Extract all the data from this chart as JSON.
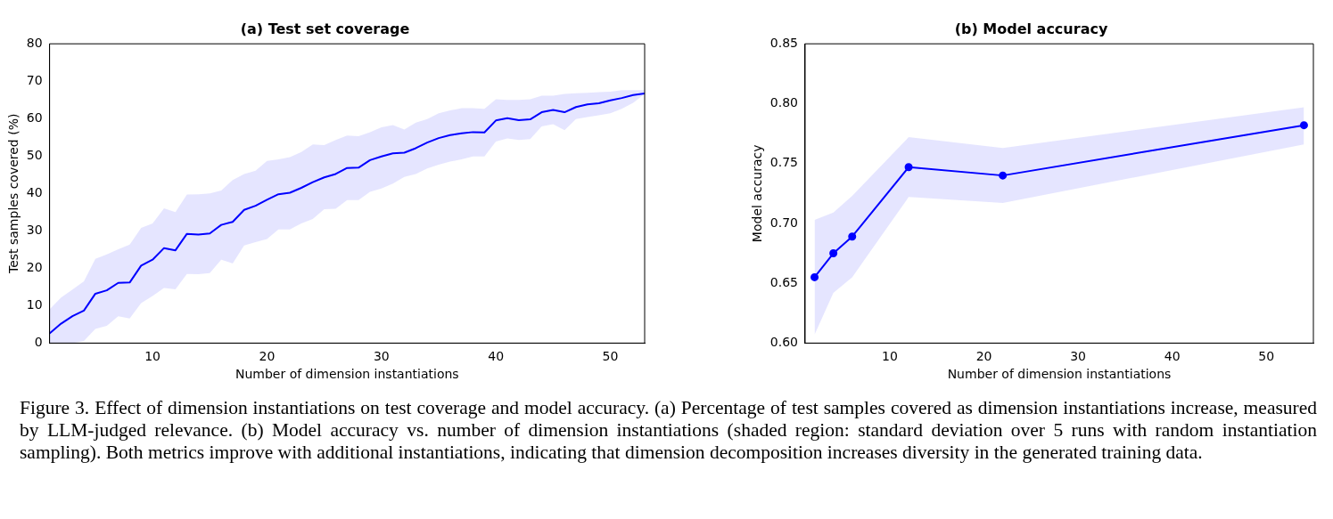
{
  "chart_data": [
    {
      "type": "line",
      "title": "(a) Test set coverage",
      "xlabel": "Number of dimension instantiations",
      "ylabel": "Test samples covered (%)",
      "xlim": [
        1,
        53
      ],
      "xticks": [
        10,
        20,
        30,
        40,
        50
      ],
      "ylim": [
        0,
        80
      ],
      "yticks": [
        0,
        10,
        20,
        30,
        40,
        50,
        60,
        70,
        80
      ],
      "grid": false,
      "legend": false,
      "marker": "none",
      "line_style": "solid",
      "x": [
        1,
        2,
        3,
        4,
        5,
        6,
        7,
        8,
        9,
        10,
        11,
        12,
        13,
        14,
        15,
        16,
        17,
        18,
        19,
        20,
        21,
        22,
        23,
        24,
        25,
        26,
        27,
        28,
        29,
        30,
        31,
        32,
        33,
        34,
        35,
        36,
        37,
        38,
        39,
        40,
        41,
        42,
        43,
        44,
        45,
        46,
        47,
        48,
        49,
        50,
        51,
        52,
        53
      ],
      "series": [
        {
          "color": "#0000ff",
          "values": [
            2.6,
            5.2,
            7.2,
            8.7,
            13.2,
            14.1,
            16.1,
            16.2,
            20.7,
            22.3,
            25.4,
            24.8,
            29.2,
            29.0,
            29.3,
            31.6,
            32.4,
            35.6,
            36.7,
            38.3,
            39.8,
            40.2,
            41.5,
            43.0,
            44.3,
            45.2,
            46.8,
            46.9,
            48.9,
            49.9,
            50.7,
            50.9,
            52.1,
            53.6,
            54.8,
            55.6,
            56.1,
            56.4,
            56.3,
            59.5,
            60.1,
            59.6,
            59.8,
            61.7,
            62.3,
            61.7,
            63.1,
            63.8,
            64.1,
            64.9,
            65.5,
            66.3,
            66.7
          ],
          "lower": [
            0,
            0,
            0,
            0.6,
            3.8,
            4.6,
            7.2,
            6.6,
            10.7,
            12.6,
            14.7,
            14.4,
            18.5,
            18.4,
            18.7,
            22.3,
            21.3,
            26.1,
            27.0,
            27.8,
            30.4,
            30.4,
            32.0,
            33.2,
            35.8,
            35.9,
            38.2,
            38.2,
            40.4,
            41.3,
            42.6,
            44.4,
            45.2,
            46.7,
            47.7,
            48.5,
            49.1,
            49.9,
            49.9,
            53.9,
            54.7,
            54.3,
            54.5,
            57.9,
            58.5,
            56.9,
            59.9,
            60.4,
            60.9,
            61.4,
            62.6,
            64.2,
            66.6
          ],
          "upper": [
            9.0,
            12.2,
            14.3,
            16.5,
            22.5,
            23.7,
            25.1,
            26.3,
            30.8,
            32.0,
            36.0,
            35.0,
            39.7,
            39.8,
            40.0,
            40.8,
            43.6,
            45.2,
            46.1,
            48.7,
            49.1,
            49.7,
            51.1,
            53.1,
            52.9,
            54.3,
            55.5,
            55.3,
            56.4,
            57.7,
            58.3,
            57.1,
            58.9,
            59.9,
            61.4,
            62.2,
            62.8,
            62.8,
            62.6,
            65.2,
            65.0,
            65.0,
            65.2,
            66.1,
            66.1,
            66.6,
            66.8,
            66.9,
            67.1,
            67.2,
            67.6,
            67.6,
            67.6
          ]
        }
      ],
      "annotations": [
        "Figure 3. Effect of dimension instantiations on test coverage and model accuracy. (a) Percentage of test samples covered as dimension instantiations increase, measured by LLM-judged relevance. (b) Model accuracy vs. number of dimension instantiations (shaded region: standard deviation over 5 runs with random instantiation sampling). Both metrics improve with additional instantiations, indicating that dimension decomposition increases diversity in the generated training data."
      ]
    },
    {
      "type": "line",
      "title": "(b) Model accuracy",
      "xlabel": "Number of dimension instantiations",
      "ylabel": "Model accuracy",
      "xlim": [
        1,
        55
      ],
      "xticks": [
        10,
        20,
        30,
        40,
        50
      ],
      "ylim": [
        0.6,
        0.85
      ],
      "yticks": [
        {
          "value": 0.6,
          "label": "0.60"
        },
        {
          "value": 0.65,
          "label": "0.65"
        },
        {
          "value": 0.7,
          "label": "0.70"
        },
        {
          "value": 0.75,
          "label": "0.75"
        },
        {
          "value": 0.8,
          "label": "0.80"
        },
        {
          "value": 0.85,
          "label": "0.85"
        }
      ],
      "grid": false,
      "legend": false,
      "marker": "circle",
      "line_style": "solid",
      "x": [
        2,
        4,
        6,
        12,
        22,
        54
      ],
      "series": [
        {
          "color": "#0000ff",
          "values": [
            0.655,
            0.675,
            0.689,
            0.747,
            0.74,
            0.782
          ],
          "lower": [
            0.607,
            0.642,
            0.655,
            0.722,
            0.717,
            0.766
          ],
          "upper": [
            0.703,
            0.709,
            0.723,
            0.772,
            0.763,
            0.797
          ]
        }
      ]
    }
  ]
}
